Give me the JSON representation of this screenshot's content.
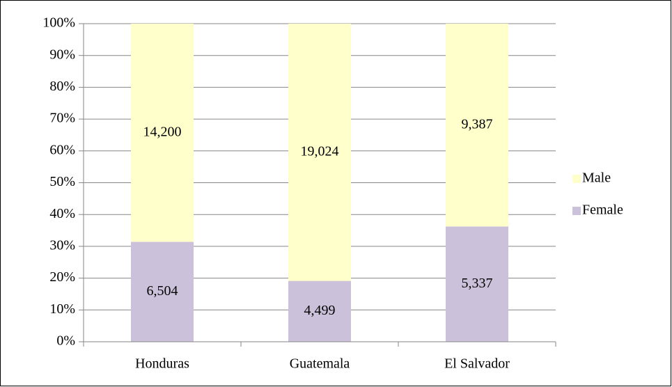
{
  "chart_data": {
    "type": "bar",
    "stack": "percent",
    "categories": [
      "Honduras",
      "Guatemala",
      "El Salvador"
    ],
    "series": [
      {
        "name": "Female",
        "color": "#ccc1da",
        "values": [
          6504,
          4499,
          5337
        ],
        "value_labels": [
          "6,504",
          "4,499",
          "5,337"
        ]
      },
      {
        "name": "Male",
        "color": "#ffffcc",
        "values": [
          14200,
          19024,
          9387
        ],
        "value_labels": [
          "14,200",
          "19,024",
          "9,387"
        ]
      }
    ],
    "ylim": [
      0,
      100
    ],
    "yticks": [
      {
        "value": 0,
        "label": "0%"
      },
      {
        "value": 10,
        "label": "10%"
      },
      {
        "value": 20,
        "label": "20%"
      },
      {
        "value": 30,
        "label": "30%"
      },
      {
        "value": 40,
        "label": "40%"
      },
      {
        "value": 50,
        "label": "50%"
      },
      {
        "value": 60,
        "label": "60%"
      },
      {
        "value": 70,
        "label": "70%"
      },
      {
        "value": 80,
        "label": "80%"
      },
      {
        "value": 90,
        "label": "90%"
      },
      {
        "value": 100,
        "label": "100%"
      }
    ],
    "grid": true,
    "legend": "right"
  }
}
